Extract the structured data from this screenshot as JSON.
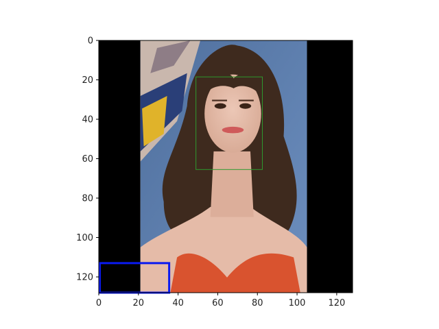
{
  "figure": {
    "axes": {
      "xlim": [
        0,
        128
      ],
      "ylim_inverted": [
        128,
        0
      ],
      "x_ticks": [
        {
          "value": 0,
          "label": "0"
        },
        {
          "value": 20,
          "label": "20"
        },
        {
          "value": 40,
          "label": "40"
        },
        {
          "value": 60,
          "label": "60"
        },
        {
          "value": 80,
          "label": "80"
        },
        {
          "value": 100,
          "label": "100"
        },
        {
          "value": 120,
          "label": "120"
        }
      ],
      "y_ticks": [
        {
          "value": 0,
          "label": "0"
        },
        {
          "value": 20,
          "label": "20"
        },
        {
          "value": 40,
          "label": "40"
        },
        {
          "value": 60,
          "label": "60"
        },
        {
          "value": 80,
          "label": "80"
        },
        {
          "value": 100,
          "label": "100"
        },
        {
          "value": 120,
          "label": "120"
        }
      ]
    },
    "image": {
      "padding_color": "#000000",
      "photo_extent_x": [
        21,
        105
      ],
      "photo_extent_y": [
        0,
        128
      ],
      "colors": {
        "background_blue": "#5b7fae",
        "banner_left": "#c9b7ad",
        "banner_yellow": "#e0b32a",
        "hair": "#3e2a1e",
        "skin": "#e1b8a6",
        "dress": "#d9532f"
      }
    },
    "boxes": [
      {
        "name": "green",
        "color": "#2e9a2e",
        "x0": 49,
        "y0": 18.5,
        "x1": 82.5,
        "y1": 65.5,
        "line_width": 1
      },
      {
        "name": "blue",
        "color": "#0a1af0",
        "x0": 0.5,
        "y0": 113,
        "x1": 35.5,
        "y1": 128,
        "line_width": 3
      }
    ]
  }
}
